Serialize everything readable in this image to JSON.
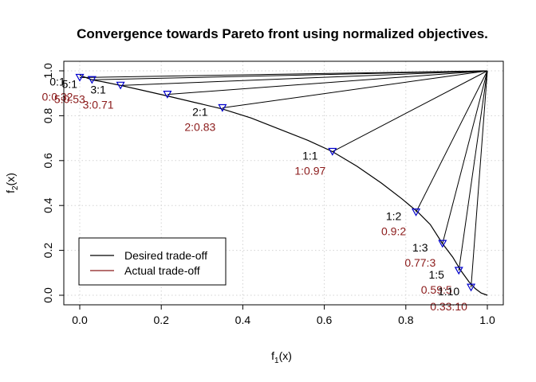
{
  "chart_data": {
    "type": "line",
    "title": "Convergence towards Pareto front using normalized objectives.",
    "xlabel": "f",
    "xlabel_sub": "1",
    "xlabel_suffix": "(x)",
    "ylabel": "f",
    "ylabel_sub": "2",
    "ylabel_suffix": "(x)",
    "xlim": [
      0,
      1
    ],
    "ylim": [
      0,
      1
    ],
    "x_ticks": [
      "0.0",
      "0.2",
      "0.4",
      "0.6",
      "0.8",
      "1.0"
    ],
    "y_ticks": [
      "0.0",
      "0.2",
      "0.4",
      "0.6",
      "0.8",
      "1.0"
    ],
    "grid": true,
    "legend_position": "bottom-left",
    "legend": [
      {
        "label": "Desired trade-off",
        "color": "#000000"
      },
      {
        "label": "Actual trade-off",
        "color": "#8b1a1a"
      }
    ],
    "colors": {
      "desired": "#000000",
      "actual": "#8b1a1a",
      "marker": "#0000cc"
    },
    "reference_point": [
      1.0,
      1.0
    ],
    "front": {
      "x": [
        0.0,
        0.03,
        0.06,
        0.1,
        0.15,
        0.21,
        0.28,
        0.35,
        0.42,
        0.49,
        0.56,
        0.62,
        0.68,
        0.74,
        0.79,
        0.83,
        0.86,
        0.89,
        0.915,
        0.935,
        0.955,
        0.97,
        0.985,
        1.0
      ],
      "y": [
        0.98,
        0.96,
        0.95,
        0.935,
        0.915,
        0.89,
        0.86,
        0.83,
        0.79,
        0.74,
        0.69,
        0.64,
        0.575,
        0.5,
        0.43,
        0.37,
        0.315,
        0.23,
        0.17,
        0.11,
        0.06,
        0.03,
        0.01,
        0.0
      ]
    },
    "solutions": [
      {
        "desired": "0:1",
        "actual": "0:0.32",
        "x": 0.0,
        "y": 0.97
      },
      {
        "desired": "5:1",
        "actual": "5:0.53",
        "x": 0.03,
        "y": 0.96
      },
      {
        "desired": "3:1",
        "actual": "3:0.71",
        "x": 0.1,
        "y": 0.935
      },
      {
        "desired": "",
        "actual": "",
        "x": 0.215,
        "y": 0.895
      },
      {
        "desired": "2:1",
        "actual": "2:0.83",
        "x": 0.35,
        "y": 0.835
      },
      {
        "desired": "1:1",
        "actual": "1:0.97",
        "x": 0.62,
        "y": 0.64
      },
      {
        "desired": "1:2",
        "actual": "0.9:2",
        "x": 0.825,
        "y": 0.37
      },
      {
        "desired": "1:3",
        "actual": "0.77:3",
        "x": 0.89,
        "y": 0.23
      },
      {
        "desired": "1:5",
        "actual": "0.59:5",
        "x": 0.93,
        "y": 0.11
      },
      {
        "desired": "1:10",
        "actual": "0.33:10",
        "x": 0.96,
        "y": 0.035
      }
    ]
  }
}
